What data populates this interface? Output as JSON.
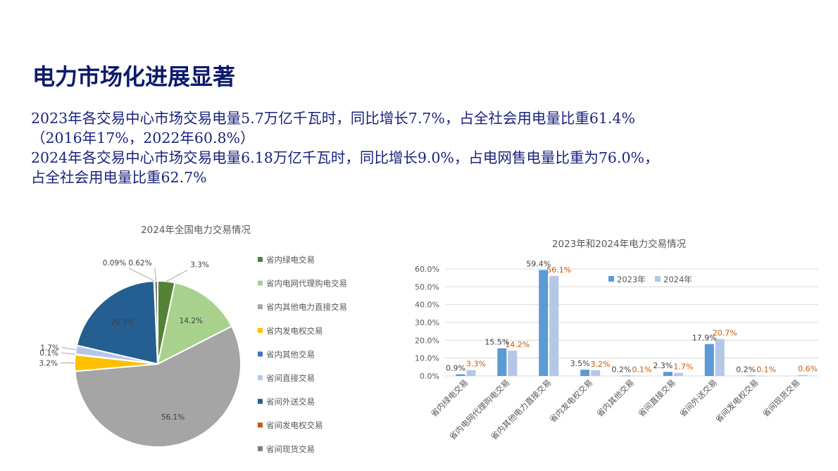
{
  "page": {
    "title": "电力市场化进展显著",
    "lines": [
      "2023年各交易中心市场交易电量5.7万亿千瓦时，同比增长7.7%，占全社会用电量比重61.4%",
      "（2016年17%，2022年60.8%）",
      "2024年各交易中心市场交易电量6.18万亿千瓦时，同比增长9.0%，占电网售电量比重为76.0%，",
      "占全社会用电量比重62.7%"
    ]
  },
  "chart_data": [
    {
      "type": "pie",
      "title": "2024年全国电力交易情况",
      "legend_position": "right",
      "slices": [
        {
          "label": "省内绿电交易",
          "value": 3.3,
          "display": "3.3%",
          "color": "#548235"
        },
        {
          "label": "省内电网代理购电交易",
          "value": 14.2,
          "display": "14.2%",
          "color": "#a9d18e"
        },
        {
          "label": "省内其他电力直接交易",
          "value": 56.1,
          "display": "56.1%",
          "color": "#a5a5a5"
        },
        {
          "label": "省内发电权交易",
          "value": 3.2,
          "display": "3.2%",
          "color": "#ffc000"
        },
        {
          "label": "省内其他交易",
          "value": 0.1,
          "display": "0.1%",
          "color": "#4472c4"
        },
        {
          "label": "省间直接交易",
          "value": 1.7,
          "display": "1.7%",
          "color": "#b4c7e7"
        },
        {
          "label": "省间外送交易",
          "value": 20.7,
          "display": "20.7%",
          "color": "#255e91"
        },
        {
          "label": "省间发电权交易",
          "value": 0.09,
          "display": "0.09%",
          "color": "#c55a11"
        },
        {
          "label": "省间现货交易",
          "value": 0.62,
          "display": "0.62%",
          "color": "#7f7f7f"
        }
      ]
    },
    {
      "type": "bar",
      "title": "2023年和2024年电力交易情况",
      "categories": [
        "省内绿电交易",
        "省内电网代理购电交易",
        "省内其他电力直接交易",
        "省内发电权交易",
        "省内其他交易",
        "省间直接交易",
        "省间外送交易",
        "省间发电权交易",
        "省间现货交易"
      ],
      "series": [
        {
          "name": "2023年",
          "color": "#5b9bd5",
          "label_color": "#404040",
          "values": [
            0.9,
            15.5,
            59.4,
            3.5,
            0.2,
            2.3,
            17.9,
            0.2,
            null
          ],
          "labels": [
            "0.9%",
            "15.5%",
            "59.4%",
            "3.5%",
            "0.2%",
            "2.3%",
            "17.9%",
            "0.2%",
            ""
          ]
        },
        {
          "name": "2024年",
          "color": "#b4c7e7",
          "label_color": "#c55a11",
          "values": [
            3.3,
            14.2,
            56.1,
            3.2,
            0.1,
            1.7,
            20.7,
            0.1,
            0.6
          ],
          "labels": [
            "3.3%",
            "14.2%",
            "56.1%",
            "3.2%",
            "0.1%",
            "1.7%",
            "20.7%",
            "0.1%",
            "0.6%"
          ]
        }
      ],
      "ylim": [
        0,
        60
      ],
      "yticks": [
        "0.0%",
        "10.0%",
        "20.0%",
        "30.0%",
        "40.0%",
        "50.0%",
        "60.0%"
      ],
      "legend_position": "top",
      "grid": true
    }
  ]
}
